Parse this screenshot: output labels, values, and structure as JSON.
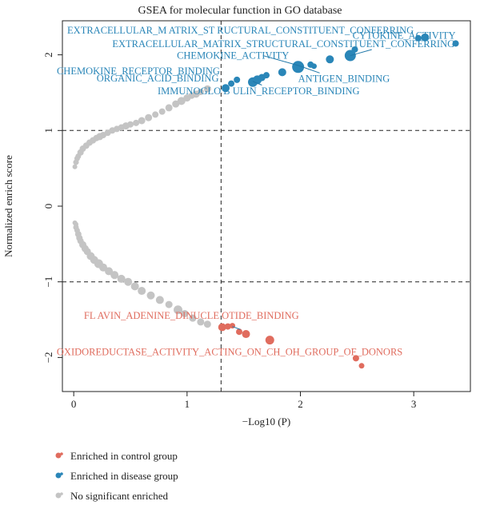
{
  "chart_data": {
    "type": "scatter",
    "title": "GSEA for molecular function in GO database",
    "xlabel": "−Log10 (P)",
    "ylabel": "Normalized enrich score",
    "xlim": [
      -0.1,
      3.5
    ],
    "ylim": [
      -2.45,
      2.45
    ],
    "x_ticks": [
      0,
      1,
      2,
      3
    ],
    "y_ticks": [
      -2,
      -1,
      0,
      1,
      2
    ],
    "reference_lines": {
      "x": 1.3,
      "y": [
        1,
        -1
      ]
    },
    "colors": {
      "control": "#e06c5e",
      "disease": "#2a86b8",
      "none": "#c4c4c4"
    },
    "series": [
      {
        "name": "No significant enriched",
        "color": "#c4c4c4",
        "points": [
          [
            0.01,
            0.52,
            3
          ],
          [
            0.02,
            0.58,
            3.5
          ],
          [
            0.03,
            0.63,
            3.5
          ],
          [
            0.04,
            0.66,
            3.5
          ],
          [
            0.06,
            0.71,
            4
          ],
          [
            0.08,
            0.76,
            4
          ],
          [
            0.11,
            0.8,
            4
          ],
          [
            0.14,
            0.84,
            4
          ],
          [
            0.17,
            0.87,
            4
          ],
          [
            0.2,
            0.9,
            4
          ],
          [
            0.23,
            0.92,
            4.5
          ],
          [
            0.26,
            0.94,
            4
          ],
          [
            0.3,
            0.97,
            4
          ],
          [
            0.34,
            1.0,
            4
          ],
          [
            0.38,
            1.02,
            4
          ],
          [
            0.42,
            1.04,
            4
          ],
          [
            0.46,
            1.06,
            4.5
          ],
          [
            0.5,
            1.08,
            4
          ],
          [
            0.55,
            1.1,
            4
          ],
          [
            0.6,
            1.13,
            4.5
          ],
          [
            0.66,
            1.17,
            4.5
          ],
          [
            0.72,
            1.21,
            4
          ],
          [
            0.78,
            1.25,
            4
          ],
          [
            0.84,
            1.3,
            4.5
          ],
          [
            0.9,
            1.35,
            4.5
          ],
          [
            0.95,
            1.39,
            5
          ],
          [
            1.0,
            1.43,
            4.5
          ],
          [
            1.04,
            1.46,
            4
          ],
          [
            1.08,
            1.48,
            4.5
          ],
          [
            1.12,
            1.51,
            4
          ],
          [
            1.18,
            1.55,
            4.5
          ],
          [
            0.01,
            -0.22,
            3
          ],
          [
            0.02,
            -0.24,
            3
          ],
          [
            0.02,
            -0.28,
            3.5
          ],
          [
            0.03,
            -0.32,
            3.5
          ],
          [
            0.04,
            -0.37,
            4
          ],
          [
            0.05,
            -0.42,
            4
          ],
          [
            0.06,
            -0.46,
            4
          ],
          [
            0.08,
            -0.51,
            4.5
          ],
          [
            0.1,
            -0.56,
            4.5
          ],
          [
            0.12,
            -0.6,
            4.5
          ],
          [
            0.15,
            -0.66,
            5
          ],
          [
            0.18,
            -0.71,
            5
          ],
          [
            0.22,
            -0.76,
            5.5
          ],
          [
            0.26,
            -0.81,
            5
          ],
          [
            0.31,
            -0.86,
            5
          ],
          [
            0.36,
            -0.91,
            5
          ],
          [
            0.42,
            -0.96,
            5
          ],
          [
            0.48,
            -1.0,
            5
          ],
          [
            0.54,
            -1.06,
            5
          ],
          [
            0.6,
            -1.12,
            5
          ],
          [
            0.68,
            -1.18,
            5
          ],
          [
            0.76,
            -1.24,
            5
          ],
          [
            0.84,
            -1.3,
            4.5
          ],
          [
            0.92,
            -1.37,
            5.5
          ],
          [
            0.98,
            -1.42,
            4.5
          ],
          [
            1.05,
            -1.48,
            4.5
          ],
          [
            1.12,
            -1.53,
            4.5
          ],
          [
            1.18,
            -1.56,
            4.5
          ]
        ]
      },
      {
        "name": "Enriched in disease group",
        "color": "#2a86b8",
        "points": [
          [
            1.34,
            1.56,
            5
          ],
          [
            1.39,
            1.62,
            4
          ],
          [
            1.44,
            1.67,
            4
          ],
          [
            1.58,
            1.64,
            6
          ],
          [
            1.62,
            1.67,
            5.5
          ],
          [
            1.66,
            1.7,
            4.5
          ],
          [
            1.7,
            1.73,
            4
          ],
          [
            1.84,
            1.77,
            5
          ],
          [
            1.98,
            1.84,
            7.5
          ],
          [
            2.09,
            1.87,
            4
          ],
          [
            2.12,
            1.85,
            3.5
          ],
          [
            2.26,
            1.94,
            5
          ],
          [
            2.44,
            1.99,
            7
          ],
          [
            2.48,
            2.07,
            4
          ],
          [
            3.04,
            2.22,
            4
          ],
          [
            3.1,
            2.23,
            5
          ],
          [
            3.37,
            2.15,
            4
          ]
        ]
      },
      {
        "name": "Enriched in control group",
        "color": "#e06c5e",
        "points": [
          [
            1.31,
            -1.6,
            5
          ],
          [
            1.36,
            -1.59,
            4
          ],
          [
            1.4,
            -1.58,
            3.5
          ],
          [
            1.46,
            -1.66,
            4
          ],
          [
            1.52,
            -1.69,
            5
          ],
          [
            1.73,
            -1.77,
            5.5
          ],
          [
            2.49,
            -2.01,
            4
          ],
          [
            2.54,
            -2.11,
            3.5
          ]
        ]
      }
    ],
    "annotations": [
      {
        "text": "EXTRACELLULAR_M  ATRIX_ST  RUCTURAL_CONSTITUENT_CONFERRING",
        "x": 3.0,
        "y": 2.28,
        "anchor": "end",
        "color": "#2a86b8"
      },
      {
        "text": "CYTOKINE_ACTIVITY",
        "x": 3.37,
        "y": 2.21,
        "anchor": "end",
        "color": "#2a86b8"
      },
      {
        "text": "EXTRACELLULAR_MATRIX_STRUCTURAL_CONSTITUENT_CONFERRING",
        "x": 3.36,
        "y": 2.1,
        "anchor": "end",
        "color": "#2a86b8"
      },
      {
        "text": "CHEMOKINE_ACTIVITY",
        "x": 1.9,
        "y": 1.95,
        "anchor": "end",
        "color": "#2a86b8"
      },
      {
        "text": "CHEMOKINE_RECEPTOR_BINDING",
        "x": 1.29,
        "y": 1.74,
        "anchor": "end",
        "color": "#2a86b8"
      },
      {
        "text": "ANTIGEN_BINDING",
        "x": 1.98,
        "y": 1.64,
        "anchor": "start",
        "color": "#2a86b8"
      },
      {
        "text": "ORGANIC_ACID_BINDING",
        "x": 1.28,
        "y": 1.65,
        "anchor": "end",
        "color": "#2a86b8"
      },
      {
        "text": "IMMUNOGLO  B  ULIN_RECEPTOR_BINDING",
        "x": 0.74,
        "y": 1.48,
        "anchor": "start",
        "color": "#2a86b8"
      },
      {
        "text": "FL AVIN_ADENINE_DINUCLE  OTIDE_BINDING",
        "x": 0.09,
        "y": -1.49,
        "anchor": "start",
        "color": "#e06c5e"
      },
      {
        "text": "OXIDOREDUCTASE_ACTIVITY_ACTING_ON_CH_OH_GROUP_OF_DONORS",
        "x": -0.15,
        "y": -1.97,
        "anchor": "start",
        "color": "#e06c5e"
      }
    ],
    "leaders": [
      {
        "x1": 1.67,
        "y1": 1.99,
        "x2": 1.98,
        "y2": 1.86
      },
      {
        "x1": 2.17,
        "y1": 1.76,
        "x2": 1.98,
        "y2": 1.86
      },
      {
        "x1": 1.66,
        "y1": 1.6,
        "x2": 1.58,
        "y2": 1.65
      },
      {
        "x1": 2.63,
        "y1": 2.07,
        "x2": 2.44,
        "y2": 1.99
      },
      {
        "x1": 1.47,
        "y1": -1.63,
        "x2": 1.4,
        "y2": -1.59
      }
    ],
    "legend": {
      "placement": "bottom-left",
      "entries": [
        {
          "label": "Enriched in control group",
          "color": "#e06c5e"
        },
        {
          "label": "Enriched in disease group",
          "color": "#2a86b8"
        },
        {
          "label": "No significant enriched",
          "color": "#c4c4c4"
        }
      ]
    }
  }
}
